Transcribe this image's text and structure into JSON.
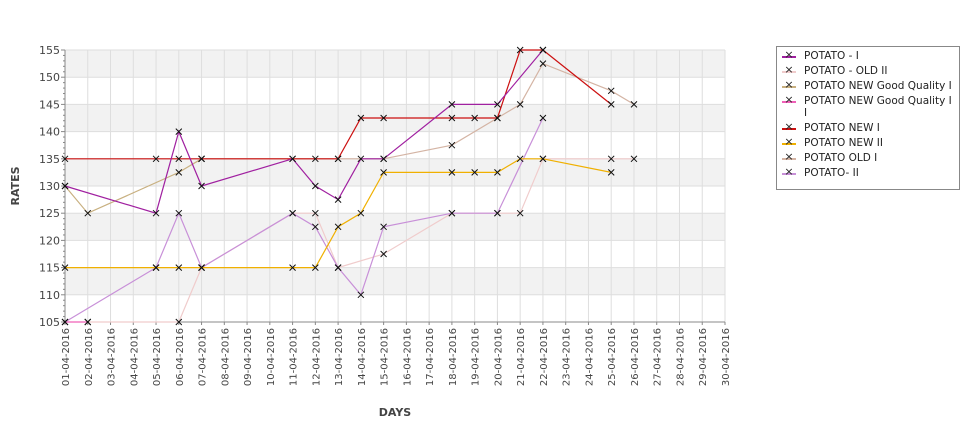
{
  "chart_data": {
    "type": "line",
    "title": "",
    "xlabel": "DAYS",
    "ylabel": "RATES",
    "ylim": [
      105,
      155
    ],
    "yticks": [
      "105",
      "110",
      "115",
      "120",
      "125",
      "130",
      "135",
      "140",
      "145",
      "150",
      "155"
    ],
    "categories": [
      "01-04-2016",
      "02-04-2016",
      "03-04-2016",
      "04-04-2016",
      "05-04-2016",
      "06-04-2016",
      "07-04-2016",
      "08-04-2016",
      "09-04-2016",
      "10-04-2016",
      "11-04-2016",
      "12-04-2016",
      "13-04-2016",
      "14-04-2016",
      "15-04-2016",
      "16-04-2016",
      "17-04-2016",
      "18-04-2016",
      "19-04-2016",
      "20-04-2016",
      "21-04-2016",
      "22-04-2016",
      "23-04-2016",
      "24-04-2016",
      "25-04-2016",
      "26-04-2016",
      "27-04-2016",
      "28-04-2016",
      "29-04-2016",
      "30-04-2016"
    ],
    "legend_position": "right",
    "series": [
      {
        "name": "POTATO - OLD II",
        "color": "#f0cccc",
        "points": [
          [
            2,
            105
          ],
          [
            6,
            105
          ],
          [
            7,
            115
          ],
          [
            11,
            125
          ],
          [
            12,
            125
          ],
          [
            13,
            115
          ],
          [
            15,
            117.5
          ],
          [
            18,
            125
          ],
          [
            20,
            125
          ],
          [
            21,
            125
          ],
          [
            22,
            135
          ],
          [
            25,
            135
          ],
          [
            26,
            135
          ]
        ]
      },
      {
        "name": "POTATO NEW Good Quality I",
        "color": "#c8b080",
        "points": [
          [
            1,
            130
          ],
          [
            2,
            125
          ],
          [
            6,
            132.5
          ],
          [
            7,
            135
          ]
        ]
      },
      {
        "name": "POTATO NEW Good Quality I I",
        "color": "#f060b8",
        "points": [
          [
            1,
            105
          ],
          [
            2,
            105
          ]
        ]
      },
      {
        "name": "POTATO OLD I",
        "color": "#d4b4a4",
        "points": [
          [
            7,
            135
          ],
          [
            11,
            135
          ],
          [
            12,
            135
          ],
          [
            13,
            135
          ],
          [
            15,
            135
          ],
          [
            18,
            137.5
          ],
          [
            20,
            142.5
          ],
          [
            21,
            145
          ],
          [
            22,
            152.5
          ],
          [
            25,
            147.5
          ],
          [
            26,
            145
          ]
        ]
      },
      {
        "name": "POTATO- II",
        "color": "#c890d8",
        "points": [
          [
            1,
            105
          ],
          [
            5,
            115
          ],
          [
            6,
            125
          ],
          [
            7,
            115
          ],
          [
            11,
            125
          ],
          [
            12,
            122.5
          ],
          [
            13,
            115
          ],
          [
            14,
            110
          ],
          [
            15,
            122.5
          ],
          [
            18,
            125
          ],
          [
            20,
            125
          ],
          [
            22,
            142.5
          ]
        ]
      },
      {
        "name": "POTATO NEW II",
        "color": "#f0b000",
        "points": [
          [
            1,
            115
          ],
          [
            5,
            115
          ],
          [
            6,
            115
          ],
          [
            7,
            115
          ],
          [
            11,
            115
          ],
          [
            12,
            115
          ],
          [
            13,
            122.5
          ],
          [
            14,
            125
          ],
          [
            15,
            132.5
          ],
          [
            18,
            132.5
          ],
          [
            19,
            132.5
          ],
          [
            20,
            132.5
          ],
          [
            21,
            135
          ],
          [
            22,
            135
          ],
          [
            25,
            132.5
          ]
        ]
      },
      {
        "name": "POTATO NEW I",
        "color": "#cc1010",
        "points": [
          [
            1,
            135
          ],
          [
            5,
            135
          ],
          [
            6,
            135
          ],
          [
            7,
            135
          ],
          [
            13,
            135
          ],
          [
            14,
            142.5
          ],
          [
            15,
            142.5
          ],
          [
            18,
            142.5
          ],
          [
            19,
            142.5
          ],
          [
            20,
            142.5
          ],
          [
            21,
            155
          ],
          [
            22,
            155
          ],
          [
            25,
            145
          ]
        ]
      },
      {
        "name": "POTATO - I",
        "color": "#a020a0",
        "points": [
          [
            1,
            130
          ],
          [
            5,
            125
          ],
          [
            6,
            140
          ],
          [
            7,
            130
          ],
          [
            11,
            135
          ],
          [
            12,
            130
          ],
          [
            13,
            127.5
          ],
          [
            14,
            135
          ],
          [
            15,
            135
          ],
          [
            18,
            145
          ],
          [
            20,
            145
          ],
          [
            22,
            155
          ]
        ]
      }
    ],
    "legend": [
      "POTATO - I",
      "POTATO - OLD II",
      "POTATO NEW Good Quality I",
      "POTATO NEW Good Quality I\nI",
      "POTATO NEW I",
      "POTATO NEW II",
      "POTATO OLD I",
      "POTATO- II"
    ],
    "legend_colors": [
      "#a020a0",
      "#f0cccc",
      "#c8b080",
      "#f060b8",
      "#cc1010",
      "#f0b000",
      "#d4b4a4",
      "#c890d8"
    ]
  }
}
